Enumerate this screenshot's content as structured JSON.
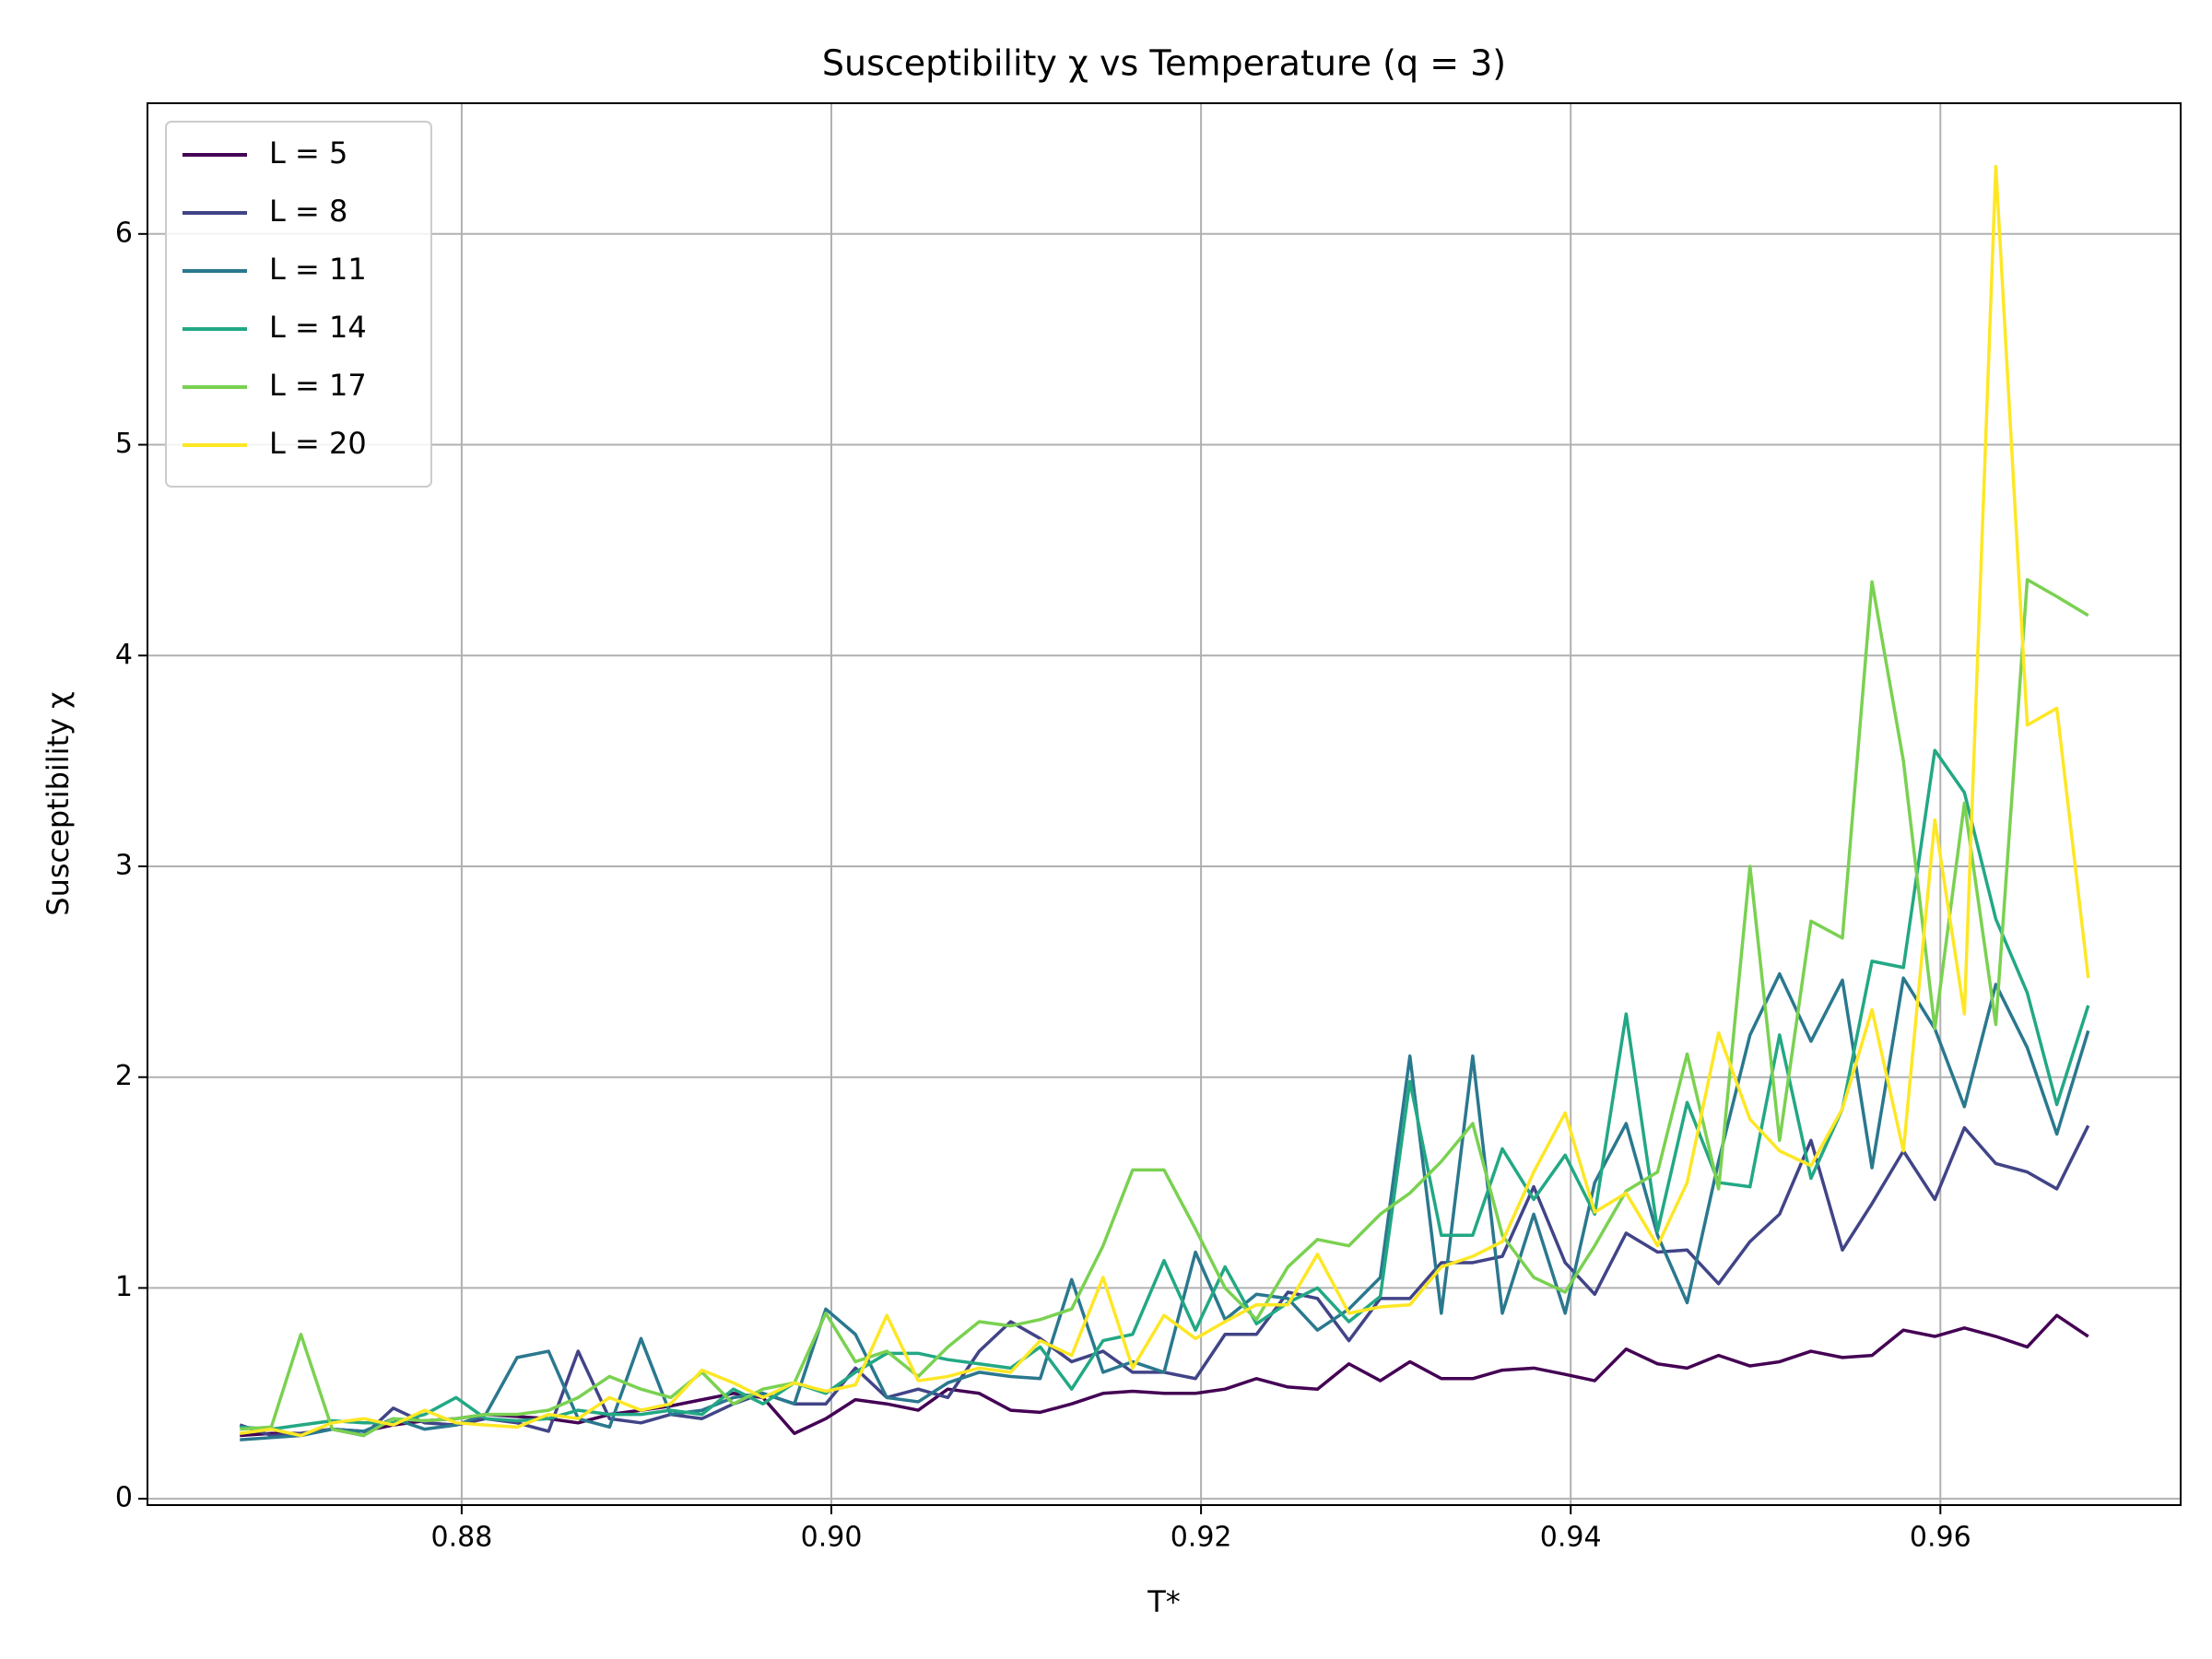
{
  "chart_data": {
    "type": "line",
    "title": "Susceptibility χ vs Temperature (q = 3)",
    "x_label": "T*",
    "y_label": "Susceptibility χ",
    "x": [
      0.868,
      0.8697,
      0.8713,
      0.873,
      0.8747,
      0.8763,
      0.878,
      0.8797,
      0.8813,
      0.883,
      0.8847,
      0.8863,
      0.888,
      0.8897,
      0.8913,
      0.893,
      0.8947,
      0.8963,
      0.898,
      0.8997,
      0.9013,
      0.903,
      0.9047,
      0.9063,
      0.908,
      0.9097,
      0.9113,
      0.913,
      0.9147,
      0.9163,
      0.918,
      0.9197,
      0.9213,
      0.923,
      0.9247,
      0.9263,
      0.928,
      0.9297,
      0.9313,
      0.933,
      0.9347,
      0.9363,
      0.938,
      0.9397,
      0.9413,
      0.943,
      0.9447,
      0.9463,
      0.948,
      0.9497,
      0.9513,
      0.953,
      0.9547,
      0.9563,
      0.958,
      0.9597,
      0.9613,
      0.963,
      0.9647,
      0.9663,
      0.968
    ],
    "series": [
      {
        "name": "L = 5",
        "color": "#440154",
        "values": [
          0.3,
          0.31,
          0.31,
          0.33,
          0.32,
          0.35,
          0.37,
          0.38,
          0.4,
          0.39,
          0.38,
          0.36,
          0.4,
          0.42,
          0.44,
          0.47,
          0.5,
          0.48,
          0.31,
          0.38,
          0.47,
          0.45,
          0.42,
          0.52,
          0.5,
          0.42,
          0.41,
          0.45,
          0.5,
          0.51,
          0.5,
          0.5,
          0.52,
          0.57,
          0.53,
          0.52,
          0.64,
          0.56,
          0.65,
          0.57,
          0.57,
          0.61,
          0.62,
          0.59,
          0.56,
          0.71,
          0.64,
          0.62,
          0.68,
          0.63,
          0.65,
          0.7,
          0.67,
          0.68,
          0.8,
          0.77,
          0.81,
          0.77,
          0.72,
          0.87,
          0.77
        ]
      },
      {
        "name": "L = 8",
        "color": "#414487",
        "values": [
          0.35,
          0.3,
          0.31,
          0.33,
          0.3,
          0.43,
          0.36,
          0.35,
          0.38,
          0.36,
          0.32,
          0.7,
          0.38,
          0.36,
          0.4,
          0.38,
          0.45,
          0.5,
          0.45,
          0.45,
          0.62,
          0.48,
          0.52,
          0.48,
          0.7,
          0.84,
          0.76,
          0.65,
          0.7,
          0.6,
          0.6,
          0.57,
          0.78,
          0.78,
          0.98,
          0.95,
          0.75,
          0.95,
          0.95,
          1.12,
          1.12,
          1.15,
          1.48,
          1.12,
          0.97,
          1.26,
          1.17,
          1.18,
          1.02,
          1.22,
          1.35,
          1.7,
          1.18,
          1.4,
          1.65,
          1.42,
          1.76,
          1.59,
          1.55,
          1.47,
          1.77
        ]
      },
      {
        "name": "L = 11",
        "color": "#2a788e",
        "values": [
          0.28,
          0.29,
          0.3,
          0.33,
          0.32,
          0.38,
          0.33,
          0.35,
          0.4,
          0.67,
          0.7,
          0.38,
          0.34,
          0.76,
          0.4,
          0.42,
          0.48,
          0.5,
          0.45,
          0.9,
          0.78,
          0.48,
          0.46,
          0.55,
          0.6,
          0.58,
          0.57,
          1.04,
          0.6,
          0.65,
          0.6,
          1.17,
          0.85,
          0.97,
          0.95,
          0.8,
          0.9,
          1.05,
          2.1,
          0.88,
          2.1,
          0.88,
          1.35,
          0.88,
          1.5,
          1.78,
          1.25,
          0.93,
          1.6,
          2.2,
          2.49,
          2.17,
          2.46,
          1.57,
          2.47,
          2.23,
          1.86,
          2.44,
          2.14,
          1.73,
          2.22
        ]
      },
      {
        "name": "L = 14",
        "color": "#22a884",
        "values": [
          0.34,
          0.33,
          0.35,
          0.37,
          0.36,
          0.36,
          0.4,
          0.48,
          0.38,
          0.37,
          0.38,
          0.42,
          0.4,
          0.4,
          0.42,
          0.4,
          0.52,
          0.45,
          0.55,
          0.5,
          0.6,
          0.69,
          0.69,
          0.66,
          0.64,
          0.62,
          0.72,
          0.52,
          0.75,
          0.78,
          1.13,
          0.8,
          1.1,
          0.83,
          0.93,
          1.0,
          0.84,
          0.96,
          1.98,
          1.25,
          1.25,
          1.66,
          1.42,
          1.63,
          1.35,
          2.3,
          1.27,
          1.88,
          1.5,
          1.48,
          2.2,
          1.52,
          1.85,
          2.55,
          2.52,
          3.55,
          3.35,
          2.75,
          2.4,
          1.87,
          2.34
        ]
      },
      {
        "name": "L = 17",
        "color": "#7ad151",
        "values": [
          0.33,
          0.34,
          0.78,
          0.33,
          0.3,
          0.38,
          0.37,
          0.38,
          0.4,
          0.4,
          0.42,
          0.48,
          0.58,
          0.52,
          0.48,
          0.6,
          0.45,
          0.52,
          0.55,
          0.88,
          0.65,
          0.7,
          0.58,
          0.72,
          0.84,
          0.82,
          0.85,
          0.9,
          1.2,
          1.56,
          1.56,
          1.28,
          1.0,
          0.85,
          1.1,
          1.23,
          1.2,
          1.35,
          1.45,
          1.6,
          1.78,
          1.25,
          1.05,
          0.98,
          1.2,
          1.46,
          1.55,
          2.11,
          1.47,
          3.0,
          1.7,
          2.74,
          2.66,
          4.35,
          3.5,
          2.23,
          3.3,
          2.25,
          4.36,
          4.28,
          4.19
        ]
      },
      {
        "name": "L = 20",
        "color": "#fde725",
        "values": [
          0.31,
          0.33,
          0.3,
          0.36,
          0.38,
          0.35,
          0.42,
          0.36,
          0.35,
          0.34,
          0.4,
          0.38,
          0.48,
          0.42,
          0.45,
          0.61,
          0.55,
          0.48,
          0.55,
          0.51,
          0.54,
          0.87,
          0.56,
          0.58,
          0.62,
          0.6,
          0.75,
          0.68,
          1.05,
          0.62,
          0.87,
          0.76,
          0.84,
          0.92,
          0.92,
          1.16,
          0.88,
          0.91,
          0.92,
          1.1,
          1.15,
          1.22,
          1.55,
          1.83,
          1.36,
          1.45,
          1.2,
          1.5,
          2.21,
          1.8,
          1.65,
          1.58,
          1.85,
          2.32,
          1.65,
          3.22,
          2.3,
          6.32,
          3.67,
          3.75,
          2.47
        ]
      }
    ],
    "xlim": [
      0.863,
      0.973
    ],
    "ylim": [
      -0.03,
      6.62
    ],
    "xticks": [
      0.88,
      {
        "value": 0.9,
        "label": "0.90"
      },
      0.92,
      0.94,
      0.96
    ],
    "yticks": [
      0,
      1,
      2,
      3,
      4,
      5,
      6
    ],
    "grid": true,
    "legend": "upper left"
  }
}
